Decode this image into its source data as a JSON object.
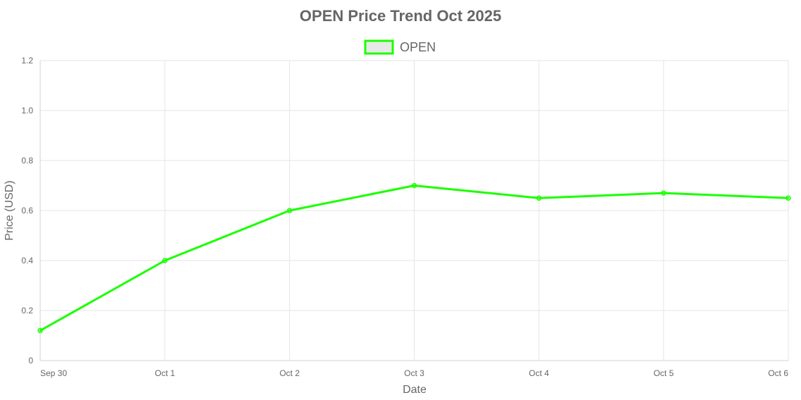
{
  "chart_data": {
    "type": "line",
    "title": "OPEN Price Trend Oct 2025",
    "xlabel": "Date",
    "ylabel": "Price (USD)",
    "categories": [
      "Sep 30",
      "Oct 1",
      "Oct 2",
      "Oct 3",
      "Oct 4",
      "Oct 5",
      "Oct 6"
    ],
    "series": [
      {
        "name": "OPEN",
        "values": [
          0.12,
          0.4,
          0.6,
          0.7,
          0.65,
          0.67,
          0.65
        ]
      }
    ],
    "ylim": [
      0,
      1.2
    ],
    "yticks": [
      "0",
      "0.2",
      "0.4",
      "0.6",
      "0.8",
      "1.0",
      "1.2"
    ],
    "grid": true,
    "legend_position": "top",
    "colors": {
      "series_line": "#1aff00",
      "legend_fill": "#e8e8e8"
    }
  }
}
